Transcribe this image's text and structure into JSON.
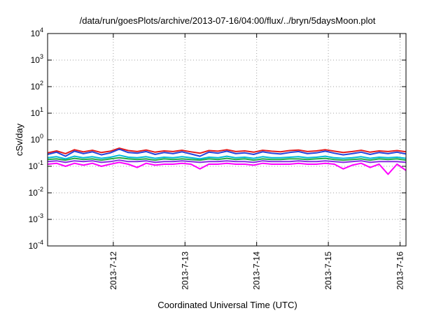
{
  "chart_data": {
    "type": "line",
    "title": "/data/run/goesPlots/archive/2013-07-16/04:00/flux/../bryn/5daysMoon.plot",
    "xlabel": "Coordinated Universal Time (UTC)",
    "ylabel": "cSv/day",
    "yscale": "log",
    "ylim": [
      0.0001,
      10000
    ],
    "xlim": [
      "2013-07-11 02:00",
      "2013-07-16 02:00"
    ],
    "grid": true,
    "legend": "none",
    "y_ticks": [
      {
        "base": "10",
        "exp": "-4"
      },
      {
        "base": "10",
        "exp": "-3"
      },
      {
        "base": "10",
        "exp": "-2"
      },
      {
        "base": "10",
        "exp": "-1"
      },
      {
        "base": "10",
        "exp": "0"
      },
      {
        "base": "10",
        "exp": "1"
      },
      {
        "base": "10",
        "exp": "2"
      },
      {
        "base": "10",
        "exp": "3"
      },
      {
        "base": "10",
        "exp": "4"
      }
    ],
    "x_ticks": [
      "2013-7-12",
      "2013-7-13",
      "2013-7-14",
      "2013-7-15",
      "2013-7-16"
    ],
    "x_tick_dates": [
      "2013-07-12 00:00",
      "2013-07-13 00:00",
      "2013-07-14 00:00",
      "2013-07-15 00:00",
      "2013-07-16 00:00"
    ],
    "x": [
      "2013-07-11 02:00",
      "2013-07-11 05:00",
      "2013-07-11 08:00",
      "2013-07-11 11:00",
      "2013-07-11 14:00",
      "2013-07-11 17:00",
      "2013-07-11 20:00",
      "2013-07-11 23:00",
      "2013-07-12 02:00",
      "2013-07-12 05:00",
      "2013-07-12 08:00",
      "2013-07-12 11:00",
      "2013-07-12 14:00",
      "2013-07-12 17:00",
      "2013-07-12 20:00",
      "2013-07-12 23:00",
      "2013-07-13 02:00",
      "2013-07-13 05:00",
      "2013-07-13 08:00",
      "2013-07-13 11:00",
      "2013-07-13 14:00",
      "2013-07-13 17:00",
      "2013-07-13 20:00",
      "2013-07-13 23:00",
      "2013-07-14 02:00",
      "2013-07-14 05:00",
      "2013-07-14 08:00",
      "2013-07-14 11:00",
      "2013-07-14 14:00",
      "2013-07-14 17:00",
      "2013-07-14 20:00",
      "2013-07-14 23:00",
      "2013-07-15 02:00",
      "2013-07-15 05:00",
      "2013-07-15 08:00",
      "2013-07-15 11:00",
      "2013-07-15 14:00",
      "2013-07-15 17:00",
      "2013-07-15 20:00",
      "2013-07-15 23:00",
      "2013-07-16 02:00"
    ],
    "series": [
      {
        "color": "#e41a1c",
        "values": [
          0.32,
          0.38,
          0.3,
          0.42,
          0.35,
          0.4,
          0.33,
          0.37,
          0.48,
          0.39,
          0.36,
          0.41,
          0.34,
          0.38,
          0.36,
          0.4,
          0.35,
          0.31,
          0.39,
          0.37,
          0.42,
          0.36,
          0.38,
          0.34,
          0.4,
          0.37,
          0.35,
          0.39,
          0.41,
          0.36,
          0.38,
          0.42,
          0.37,
          0.33,
          0.36,
          0.4,
          0.34,
          0.38,
          0.36,
          0.39,
          0.35
        ]
      },
      {
        "color": "#2244dd",
        "values": [
          0.28,
          0.34,
          0.24,
          0.37,
          0.3,
          0.35,
          0.27,
          0.32,
          0.44,
          0.33,
          0.31,
          0.36,
          0.28,
          0.33,
          0.3,
          0.35,
          0.29,
          0.24,
          0.34,
          0.31,
          0.37,
          0.3,
          0.32,
          0.28,
          0.35,
          0.31,
          0.29,
          0.33,
          0.36,
          0.3,
          0.32,
          0.37,
          0.31,
          0.27,
          0.3,
          0.34,
          0.28,
          0.33,
          0.3,
          0.34,
          0.29
        ]
      },
      {
        "color": "#00b8d8",
        "values": [
          0.21,
          0.23,
          0.19,
          0.24,
          0.21,
          0.23,
          0.2,
          0.22,
          0.26,
          0.22,
          0.21,
          0.23,
          0.2,
          0.22,
          0.21,
          0.23,
          0.21,
          0.19,
          0.22,
          0.21,
          0.24,
          0.21,
          0.22,
          0.2,
          0.23,
          0.21,
          0.21,
          0.22,
          0.23,
          0.21,
          0.22,
          0.24,
          0.21,
          0.2,
          0.21,
          0.23,
          0.2,
          0.22,
          0.21,
          0.22,
          0.2
        ]
      },
      {
        "color": "#22aa44",
        "values": [
          0.18,
          0.19,
          0.17,
          0.2,
          0.18,
          0.19,
          0.17,
          0.19,
          0.21,
          0.19,
          0.18,
          0.19,
          0.17,
          0.19,
          0.18,
          0.19,
          0.18,
          0.17,
          0.19,
          0.18,
          0.2,
          0.18,
          0.19,
          0.17,
          0.19,
          0.18,
          0.18,
          0.19,
          0.19,
          0.18,
          0.19,
          0.2,
          0.18,
          0.17,
          0.18,
          0.19,
          0.17,
          0.19,
          0.18,
          0.19,
          0.17
        ]
      },
      {
        "color": "#8a2be2",
        "values": [
          0.15,
          0.16,
          0.14,
          0.16,
          0.15,
          0.16,
          0.14,
          0.15,
          0.17,
          0.15,
          0.15,
          0.16,
          0.14,
          0.15,
          0.15,
          0.16,
          0.15,
          0.14,
          0.15,
          0.15,
          0.16,
          0.15,
          0.15,
          0.14,
          0.16,
          0.15,
          0.15,
          0.15,
          0.16,
          0.15,
          0.15,
          0.16,
          0.15,
          0.14,
          0.15,
          0.16,
          0.14,
          0.15,
          0.15,
          0.15,
          0.14
        ]
      },
      {
        "color": "#ff00ff",
        "values": [
          0.12,
          0.13,
          0.1,
          0.13,
          0.11,
          0.13,
          0.1,
          0.12,
          0.14,
          0.12,
          0.09,
          0.13,
          0.11,
          0.12,
          0.12,
          0.13,
          0.12,
          0.08,
          0.12,
          0.12,
          0.13,
          0.12,
          0.12,
          0.11,
          0.13,
          0.12,
          0.12,
          0.12,
          0.13,
          0.12,
          0.12,
          0.13,
          0.12,
          0.08,
          0.11,
          0.13,
          0.09,
          0.12,
          0.05,
          0.12,
          0.07
        ]
      }
    ]
  }
}
